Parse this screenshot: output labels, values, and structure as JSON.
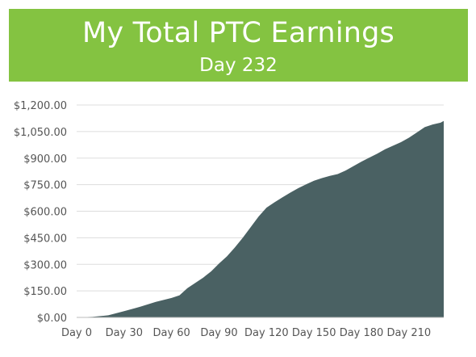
{
  "header": {
    "title": "My Total PTC Earnings",
    "subtitle": "Day 232"
  },
  "colors": {
    "header_bg": "#84c341",
    "area_fill": "#4a6163",
    "grid": "#dddddd",
    "tick_text": "#555555"
  },
  "chart_data": {
    "type": "area",
    "title": "My Total PTC Earnings",
    "subtitle": "Day 232",
    "xlabel": "",
    "ylabel": "",
    "grid": true,
    "xlim": [
      0,
      232
    ],
    "ylim": [
      0,
      1200
    ],
    "yticks": [
      0,
      150,
      300,
      450,
      600,
      750,
      900,
      1050,
      1200
    ],
    "ytick_labels": [
      "$0.00",
      "$150.00",
      "$300.00",
      "$450.00",
      "$600.00",
      "$750.00",
      "$900.00",
      "$1,050.00",
      "$1,200.00"
    ],
    "xticks": [
      0,
      30,
      60,
      90,
      120,
      150,
      180,
      210
    ],
    "xtick_labels": [
      "Day 0",
      "Day 30",
      "Day 60",
      "Day 90",
      "Day 120",
      "Day 150",
      "Day 180",
      "Day 210"
    ],
    "series": [
      {
        "x": [
          0,
          10,
          20,
          30,
          40,
          50,
          60,
          65,
          70,
          75,
          80,
          85,
          90,
          95,
          100,
          105,
          110,
          115,
          120,
          125,
          130,
          135,
          140,
          145,
          150,
          155,
          160,
          165,
          170,
          175,
          180,
          185,
          190,
          195,
          200,
          205,
          210,
          215,
          220,
          225,
          230,
          232
        ],
        "values": [
          0,
          3,
          12,
          35,
          60,
          88,
          110,
          125,
          165,
          195,
          225,
          260,
          305,
          345,
          395,
          450,
          510,
          570,
          620,
          650,
          678,
          705,
          730,
          752,
          772,
          787,
          800,
          810,
          830,
          855,
          880,
          903,
          925,
          950,
          970,
          990,
          1015,
          1045,
          1075,
          1090,
          1100,
          1110
        ]
      }
    ]
  }
}
